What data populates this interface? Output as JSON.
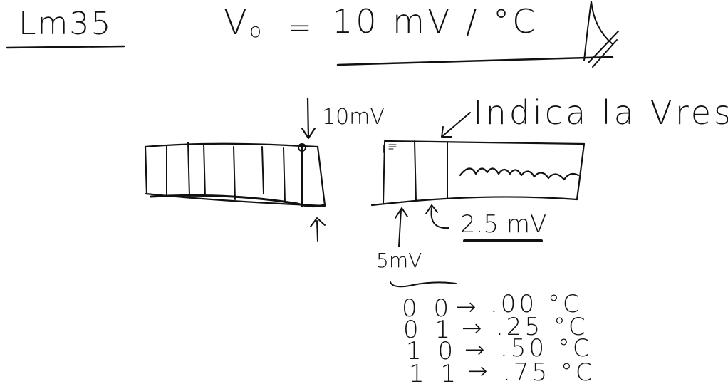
{
  "colors": {
    "ink": "#111111",
    "background": "#ffffff"
  },
  "title": "Lm35",
  "formula": {
    "lhs": "V",
    "subscript": "o",
    "equals": "=",
    "rhs": "10 mV / °C"
  },
  "labels": {
    "top_step": "10mV",
    "resolution_note": "Indica la Vresol.",
    "first_step": "5mV",
    "step_size": "2.5 mV"
  },
  "table": [
    {
      "bits": "0 0",
      "arrow": "→",
      "value": ".00 °C"
    },
    {
      "bits": "0 1",
      "arrow": "→",
      "value": ".25 °C"
    },
    {
      "bits": "1 0",
      "arrow": "→",
      "value": ".50 °C"
    },
    {
      "bits": "1 1",
      "arrow": "→",
      "value": ".75 °C"
    }
  ]
}
